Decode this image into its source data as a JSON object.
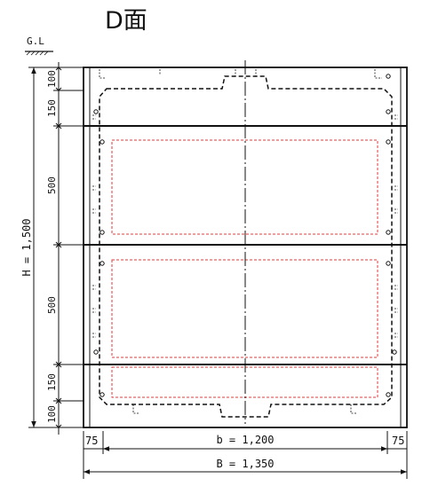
{
  "title": "D面",
  "ground_label": "G.L",
  "height_total": "H = 1,500",
  "vertical_dims": [
    "100",
    "150",
    "500",
    "500",
    "150",
    "100"
  ],
  "width_inner": "b = 1,200",
  "width_outer": "B = 1,350",
  "side_dim_left": "75",
  "side_dim_right": "75",
  "colors": {
    "line": "#111111",
    "hidden_red": "#e23b3b"
  }
}
